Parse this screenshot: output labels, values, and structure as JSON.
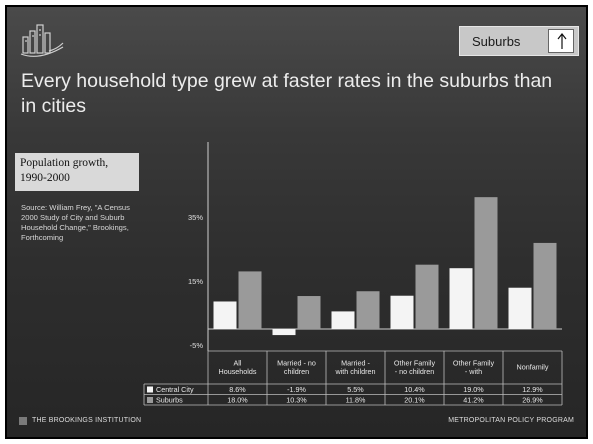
{
  "nav": {
    "label": "Suburbs"
  },
  "title": "Every household type grew at faster rates in the suburbs than in cities",
  "subtitle": "Population growth, 1990-2000",
  "source": "Source: William Frey, \"A Census 2000 Study of City and Suburb Household Change,\" Brookings, Forthcoming",
  "footer": {
    "left": "THE BROOKINGS INSTITUTION",
    "right": "METROPOLITAN POLICY PROGRAM"
  },
  "colors": {
    "central_city": "#f4f4f4",
    "suburbs": "#9a9a9a",
    "background": "#333333"
  },
  "chart_data": {
    "type": "bar",
    "title": "",
    "xlabel": "",
    "ylabel": "",
    "ylim": [
      -5,
      45
    ],
    "yticks": [
      -5,
      15,
      35
    ],
    "ytick_labels": [
      "-5%",
      "15%",
      "35%"
    ],
    "grid": false,
    "legend": "table-below",
    "categories": [
      "All Households",
      "Married - no children",
      "Married - with children",
      "Other Family - no children",
      "Other Family - with",
      "Nonfamily"
    ],
    "series": [
      {
        "name": "Central City",
        "values": [
          8.6,
          -1.9,
          5.5,
          10.4,
          19.0,
          12.9
        ],
        "labels": [
          "8.6%",
          "-1.9%",
          "5.5%",
          "10.4%",
          "19.0%",
          "12.9%"
        ]
      },
      {
        "name": "Suburbs",
        "values": [
          18.0,
          10.3,
          11.8,
          20.1,
          41.2,
          26.9
        ],
        "labels": [
          "18.0%",
          "10.3%",
          "11.8%",
          "20.1%",
          "41.2%",
          "26.9%"
        ]
      }
    ]
  }
}
